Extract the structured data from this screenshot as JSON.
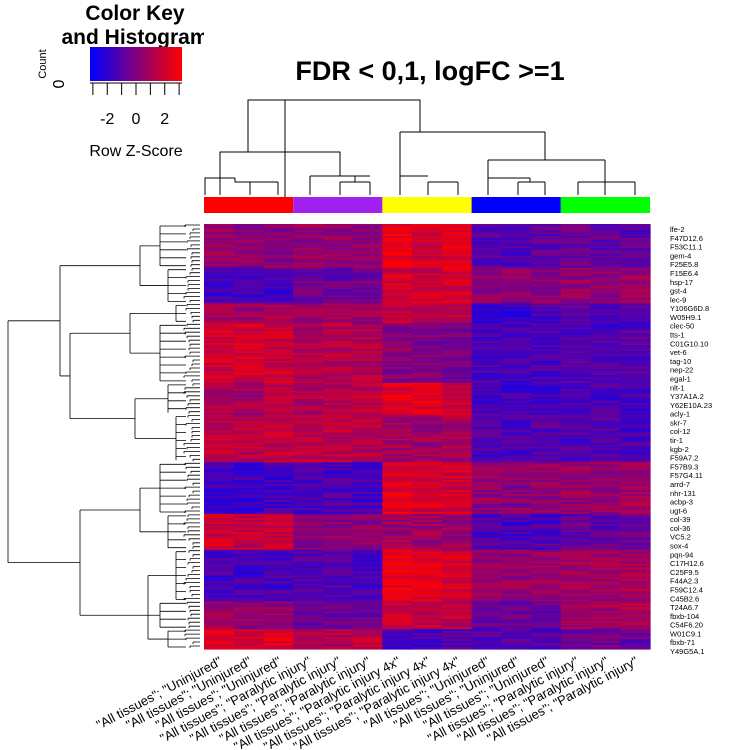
{
  "chart_data": {
    "type": "heatmap",
    "title": "FDR < 0,1, logFC >=1",
    "color_key": {
      "title_line1": "Color Key",
      "title_line2": "and Histogram",
      "ylabel": "Count",
      "y_tick": "0",
      "x_ticks": [
        "-2",
        "0",
        "2"
      ],
      "x_tick_values": [
        -2,
        0,
        2
      ],
      "range": [
        -3.2,
        3.2
      ],
      "xlabel": "Row Z-Score",
      "colors": [
        "#0000ff",
        "#ff0000"
      ]
    },
    "column_labels": [
      "\"All tissues\"; \"Uninjured\"",
      "\"All tissues\"; \"Uninjured\"",
      "\"All tissues\"; \"Uninjured\"",
      "\"All tissues\"; \"Paralytic injury\"",
      "\"All tissues\"; \"Paralytic injury\"",
      "\"All tissues\"; \"Paralytic injury\"",
      "\"All tissues\"; \"Paralytic injury 4x\"",
      "\"All tissues\"; \"Paralytic injury 4x\"",
      "\"All tissues\"; \"Paralytic injury 4x\"",
      "\"All tissues\"; \"Uninjured\"",
      "\"All tissues\"; \"Uninjured\"",
      "\"All tissues\"; \"Uninjured\"",
      "\"All tissues\"; \"Paralytic injury\"",
      "\"All tissues\"; \"Paralytic injury\"",
      "\"All tissues\"; \"Paralytic injury\""
    ],
    "column_groups": [
      {
        "color": "#ff0000",
        "columns": [
          0,
          1,
          2
        ]
      },
      {
        "color": "#a020f0",
        "columns": [
          3,
          4,
          5
        ]
      },
      {
        "color": "#ffff00",
        "columns": [
          6,
          7,
          8
        ]
      },
      {
        "color": "#0000ff",
        "columns": [
          9,
          10,
          11
        ]
      },
      {
        "color": "#00ff00",
        "columns": [
          12,
          13,
          14
        ]
      }
    ],
    "row_labels": [
      "lfe-2",
      "F47D12.6",
      "F53C11.1",
      "gem-4",
      "F25E5.8",
      "F15E6.4",
      "hsp-17",
      "gst-4",
      "lec-9",
      "Y106G6D.8",
      "W05H9.1",
      "clec-50",
      "tts-1",
      "C01G10.10",
      "vet-6",
      "tag-10",
      "nep-22",
      "egal-1",
      "nlt-1",
      "Y37A1A.2",
      "Y62E10A.23",
      "acly-1",
      "skr-7",
      "col-12",
      "tir-1",
      "kgb-2",
      "F59A7.2",
      "F57B9.3",
      "F57G4.11",
      "arrd-7",
      "nhr-131",
      "acbp-3",
      "ugt-6",
      "col-39",
      "col-36",
      "VC5.2",
      "sox-4",
      "pqn-94",
      "C17H12.6",
      "C25F9.5",
      "F44A2.3",
      "F59C12.4",
      "C45B2.6",
      "T24A6.7",
      "fbxb-104",
      "C54F6.20",
      "W01C9.1",
      "fbxb-71",
      "Y49G5A.1"
    ],
    "row_blocks": [
      {
        "rows": 22,
        "pattern": [
          0.4,
          0.2,
          0.2,
          0.3,
          0.3,
          0.2,
          2.0,
          1.6,
          1.8,
          -0.8,
          -0.9,
          -0.7,
          -0.5,
          -0.6,
          -0.6
        ]
      },
      {
        "rows": 18,
        "pattern": [
          -1.3,
          -1.2,
          -1.1,
          -0.3,
          -0.4,
          -0.3,
          1.6,
          1.4,
          1.5,
          0.2,
          0.3,
          0.2,
          0.4,
          0.3,
          0.5
        ]
      },
      {
        "rows": 10,
        "pattern": [
          0.6,
          0.5,
          0.7,
          0.5,
          0.6,
          0.4,
          1.2,
          1.0,
          1.1,
          -1.2,
          -1.3,
          -1.1,
          -0.8,
          -0.9,
          -0.8
        ]
      },
      {
        "rows": 30,
        "pattern": [
          1.5,
          1.6,
          1.4,
          0.9,
          1.0,
          0.9,
          0.1,
          0.0,
          -0.1,
          -1.0,
          -1.1,
          -1.0,
          -0.9,
          -1.0,
          -0.8
        ]
      },
      {
        "rows": 16,
        "pattern": [
          0.8,
          0.7,
          0.9,
          0.9,
          1.0,
          1.1,
          1.9,
          1.7,
          1.6,
          -1.2,
          -1.3,
          -1.1,
          -1.1,
          -1.0,
          -1.2
        ]
      },
      {
        "rows": 24,
        "pattern": [
          1.2,
          1.1,
          1.3,
          1.1,
          1.2,
          1.0,
          0.6,
          0.5,
          0.7,
          -0.9,
          -1.0,
          -0.8,
          -0.9,
          -0.8,
          -1.0
        ]
      },
      {
        "rows": 26,
        "pattern": [
          -1.3,
          -1.4,
          -1.2,
          -1.1,
          -1.0,
          -1.2,
          1.8,
          1.6,
          1.5,
          0.3,
          0.2,
          0.4,
          0.5,
          0.4,
          0.6
        ]
      },
      {
        "rows": 18,
        "pattern": [
          1.4,
          1.2,
          1.3,
          0.2,
          0.3,
          0.1,
          0.6,
          0.5,
          0.4,
          -1.0,
          -1.1,
          -0.9,
          -0.6,
          -0.7,
          -0.5
        ]
      },
      {
        "rows": 26,
        "pattern": [
          -1.1,
          -1.2,
          -1.0,
          -0.9,
          -0.8,
          -1.0,
          1.9,
          1.7,
          1.6,
          0.4,
          0.3,
          0.5,
          0.6,
          0.5,
          0.7
        ]
      },
      {
        "rows": 14,
        "pattern": [
          0.4,
          0.3,
          0.5,
          -0.5,
          -0.4,
          -0.6,
          1.4,
          1.2,
          1.1,
          -0.5,
          -0.4,
          -0.6,
          0.8,
          0.7,
          0.9
        ]
      },
      {
        "rows": 10,
        "pattern": [
          1.8,
          1.7,
          1.9,
          1.0,
          0.9,
          1.1,
          -1.0,
          -1.1,
          -0.9,
          -0.8,
          -0.7,
          -0.9,
          -0.4,
          -0.3,
          -0.5
        ]
      }
    ],
    "grid": false,
    "legend_position": "top-left"
  }
}
